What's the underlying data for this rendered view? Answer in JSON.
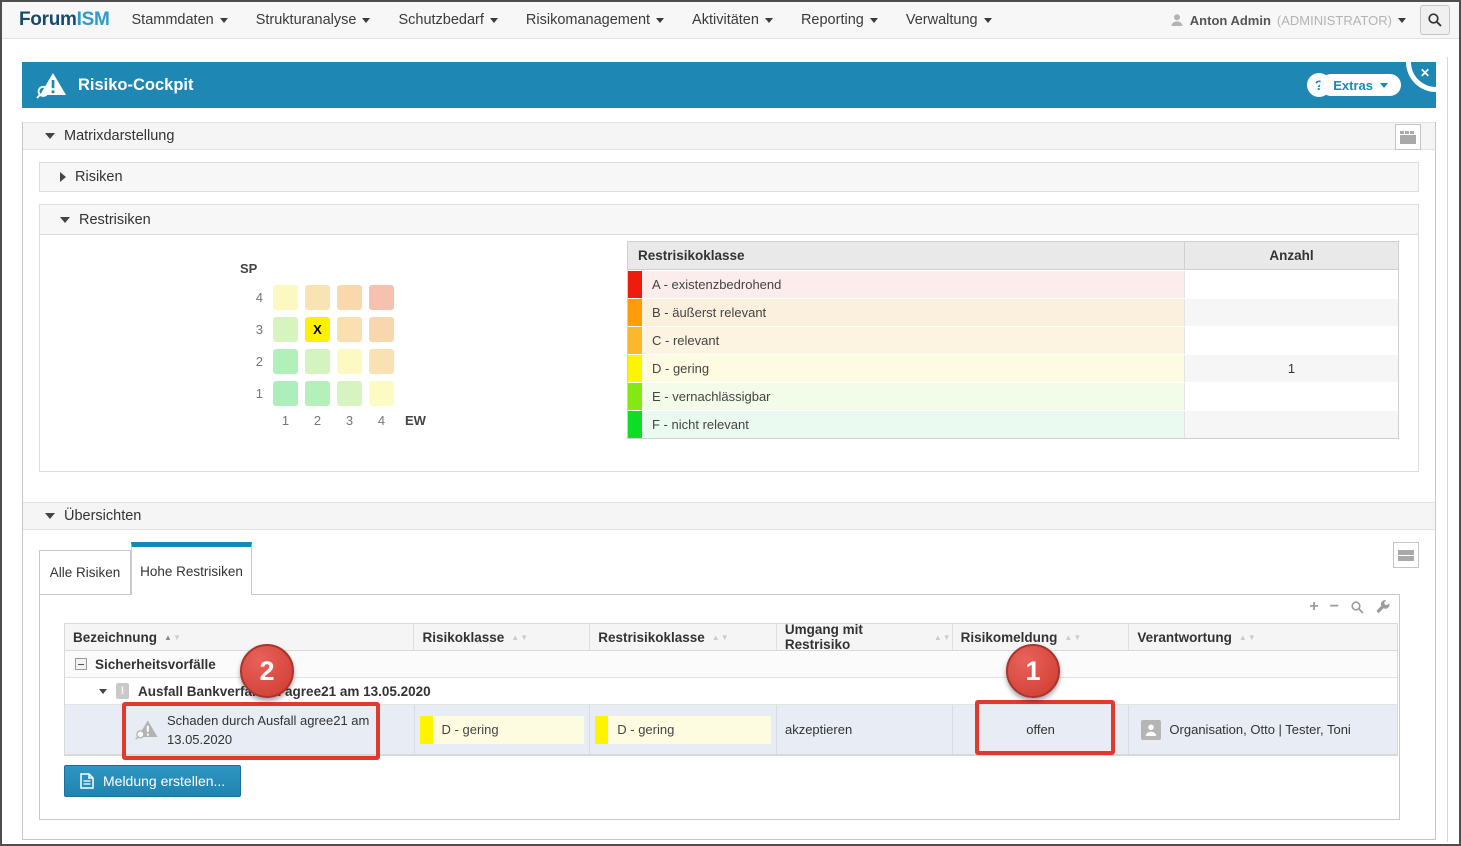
{
  "topbar": {
    "logo_part1": "Forum",
    "logo_part2": "ISM",
    "menus": [
      "Stammdaten",
      "Strukturanalyse",
      "Schutzbedarf",
      "Risikomanagement",
      "Aktivitäten",
      "Reporting",
      "Verwaltung"
    ],
    "user_name": "Anton Admin",
    "user_role": "(ADMINISTRATOR)"
  },
  "cockpit": {
    "title": "Risiko-Cockpit",
    "help": "?",
    "extras": "Extras",
    "close": "✕"
  },
  "sections": {
    "matrixdarstellung": "Matrixdarstellung",
    "risiken": "Risiken",
    "restrisiken": "Restrisiken",
    "uebersichten": "Übersichten"
  },
  "matrix": {
    "y_label": "SP",
    "x_label": "EW",
    "row_labels": [
      "4",
      "3",
      "2",
      "1"
    ],
    "col_labels": [
      "1",
      "2",
      "3",
      "4"
    ],
    "marker": "X",
    "marker_row": 1,
    "marker_col": 1,
    "cells": [
      [
        "#fcf9c0",
        "#fae3b2",
        "#f9d9ac",
        "#f5c2b0"
      ],
      [
        "#d7f3be",
        "#fff000",
        "#fadfb1",
        "#f9d7ae"
      ],
      [
        "#b2f0ba",
        "#d5f3bf",
        "#fcfac2",
        "#fae1b2"
      ],
      [
        "#acefba",
        "#b4f0ba",
        "#d7f4c0",
        "#fcfbc4"
      ]
    ]
  },
  "klasse_table": {
    "header_class": "Restrisikoklasse",
    "header_count": "Anzahl",
    "rows": [
      {
        "label": "A - existenzbedrohend",
        "count": "",
        "bar": "#ed1c0e",
        "bg": "#fceceb"
      },
      {
        "label": "B - äußerst relevant",
        "count": "",
        "bar": "#ff9d09",
        "bg": "#fbf0dd"
      },
      {
        "label": "C - relevant",
        "count": "",
        "bar": "#fdb72d",
        "bg": "#fcf3e0"
      },
      {
        "label": "D - gering",
        "count": "1",
        "bar": "#fdf403",
        "bg": "#fdfce3"
      },
      {
        "label": "E - vernachlässigbar",
        "count": "",
        "bar": "#84e812",
        "bg": "#f3fbe9"
      },
      {
        "label": "F - nicht relevant",
        "count": "",
        "bar": "#0ddd26",
        "bg": "#eafaf0"
      }
    ]
  },
  "tabs": {
    "all": "Alle Risiken",
    "high": "Hohe Restrisiken"
  },
  "overview": {
    "columns": [
      {
        "label": "Bezeichnung",
        "sorted": true
      },
      {
        "label": "Risikoklasse",
        "sorted": false
      },
      {
        "label": "Restrisikoklasse",
        "sorted": false
      },
      {
        "label": "Umgang mit Restrisiko",
        "sorted": false
      },
      {
        "label": "Risikomeldung",
        "sorted": false
      },
      {
        "label": "Verantwortung",
        "sorted": false
      }
    ],
    "group_label": "Sicherheitsvorfälle",
    "risk_label": "Ausfall Bankverfahren agree21 am 13.05.2020",
    "detail": {
      "bezeichnung": "Schaden durch Ausfall agree21 am 13.05.2020",
      "risikoklasse": "D - gering",
      "restrisikoklasse": "D - gering",
      "umgang": "akzeptieren",
      "meldung": "offen",
      "verantwortung": "Organisation, Otto | Tester, Toni"
    },
    "create_button": "Meldung erstellen..."
  },
  "annotations": {
    "badge_1": "1",
    "badge_2": "2"
  },
  "colors": {
    "accent_blue": "#1e87b3",
    "tab_accent": "#1787b8",
    "annotation_red": "#e0392e",
    "highlight_row": "#e8ecf4",
    "marker_yellow": "#fff000"
  }
}
